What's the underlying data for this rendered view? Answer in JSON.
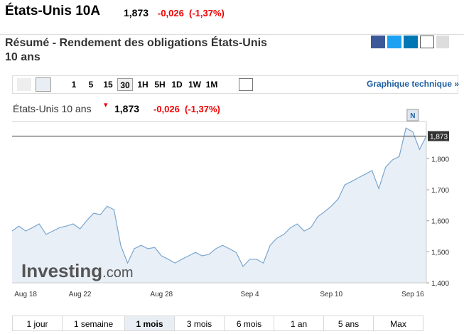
{
  "header": {
    "title": "États-Unis 10A",
    "price": "1,873",
    "change": "-0,026",
    "change_pct": "(-1,37%)"
  },
  "section_title": [
    "Résumé - Rendement des obligations États-Unis",
    "10 ans"
  ],
  "toolbar": {
    "intervals": [
      "1",
      "5",
      "15",
      "30",
      "1H",
      "5H",
      "1D",
      "1W",
      "1M"
    ],
    "active_interval": "30",
    "link": "Graphique technique »"
  },
  "chart_data": {
    "type": "line",
    "title": "États-Unis 10 ans",
    "price": "1,873",
    "change": "-0,026",
    "change_pct": "(-1,37%)",
    "watermark": "Investing",
    "watermark_suffix": ".com",
    "news_marker": "N",
    "color": "#7ba6d0",
    "fill": "#e8eff6",
    "last": {
      "value": 1.873,
      "label": "1,873"
    },
    "categories": [
      null,
      null,
      "Aug 18",
      null,
      null,
      null,
      null,
      null,
      null,
      null,
      "Aug 22",
      null,
      null,
      null,
      null,
      null,
      null,
      null,
      null,
      null,
      null,
      null,
      "Aug 28",
      null,
      null,
      null,
      null,
      null,
      null,
      null,
      null,
      null,
      null,
      null,
      null,
      "Sep 4",
      null,
      null,
      null,
      null,
      null,
      null,
      null,
      null,
      null,
      null,
      null,
      "Sep 10",
      null,
      null,
      null,
      null,
      null,
      null,
      null,
      null,
      null,
      null,
      null,
      "Sep 16",
      null,
      null
    ],
    "values": [
      1.567,
      1.583,
      1.567,
      1.578,
      1.59,
      1.556,
      1.567,
      1.578,
      1.583,
      1.59,
      1.574,
      1.601,
      1.624,
      1.62,
      1.647,
      1.636,
      1.521,
      1.464,
      1.51,
      1.521,
      1.51,
      1.514,
      1.487,
      1.476,
      1.464,
      1.476,
      1.487,
      1.498,
      1.487,
      1.492,
      1.51,
      1.521,
      1.51,
      1.498,
      1.453,
      1.476,
      1.476,
      1.464,
      1.521,
      1.544,
      1.556,
      1.578,
      1.59,
      1.567,
      1.578,
      1.613,
      1.629,
      1.647,
      1.67,
      1.716,
      1.727,
      1.739,
      1.75,
      1.762,
      1.704,
      1.773,
      1.796,
      1.807,
      1.899,
      1.887,
      1.83,
      1.873
    ],
    "ylim": [
      1.4,
      1.92
    ],
    "yticks": [
      {
        "value": 1.4,
        "label": "1,400"
      },
      {
        "value": 1.5,
        "label": "1,500"
      },
      {
        "value": 1.6,
        "label": "1,600"
      },
      {
        "value": 1.7,
        "label": "1,700"
      },
      {
        "value": 1.8,
        "label": "1,800"
      }
    ]
  },
  "ranges": {
    "items": [
      "1 jour",
      "1 semaine",
      "1 mois",
      "3 mois",
      "6 mois",
      "1 an",
      "5 ans",
      "Max"
    ],
    "active": "1 mois"
  }
}
